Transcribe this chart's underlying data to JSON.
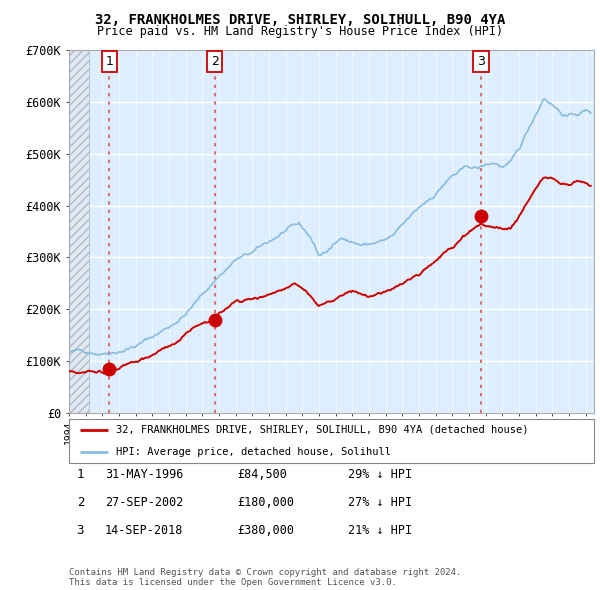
{
  "title": "32, FRANKHOLMES DRIVE, SHIRLEY, SOLIHULL, B90 4YA",
  "subtitle": "Price paid vs. HM Land Registry's House Price Index (HPI)",
  "ylabel_ticks": [
    "£0",
    "£100K",
    "£200K",
    "£300K",
    "£400K",
    "£500K",
    "£600K",
    "£700K"
  ],
  "ylim": [
    0,
    700000
  ],
  "xlim_start": 1994.0,
  "xlim_end": 2025.5,
  "hatch_end": 1995.2,
  "sales": [
    {
      "label": "1",
      "year": 1996.42,
      "price": 84500
    },
    {
      "label": "2",
      "year": 2002.74,
      "price": 180000
    },
    {
      "label": "3",
      "year": 2018.71,
      "price": 380000
    }
  ],
  "sale_color": "#cc0000",
  "hpi_color": "#88bbdd",
  "plot_bg_color": "#ddeeff",
  "legend_sale_label": "32, FRANKHOLMES DRIVE, SHIRLEY, SOLIHULL, B90 4YA (detached house)",
  "legend_hpi_label": "HPI: Average price, detached house, Solihull",
  "table_rows": [
    {
      "num": "1",
      "date": "31-MAY-1996",
      "price": "£84,500",
      "hpi": "29% ↓ HPI"
    },
    {
      "num": "2",
      "date": "27-SEP-2002",
      "price": "£180,000",
      "hpi": "27% ↓ HPI"
    },
    {
      "num": "3",
      "date": "14-SEP-2018",
      "price": "£380,000",
      "hpi": "21% ↓ HPI"
    }
  ],
  "footnote": "Contains HM Land Registry data © Crown copyright and database right 2024.\nThis data is licensed under the Open Government Licence v3.0.",
  "background_color": "#ffffff",
  "grid_color": "#ffffff",
  "vline_color": "#dd4444"
}
